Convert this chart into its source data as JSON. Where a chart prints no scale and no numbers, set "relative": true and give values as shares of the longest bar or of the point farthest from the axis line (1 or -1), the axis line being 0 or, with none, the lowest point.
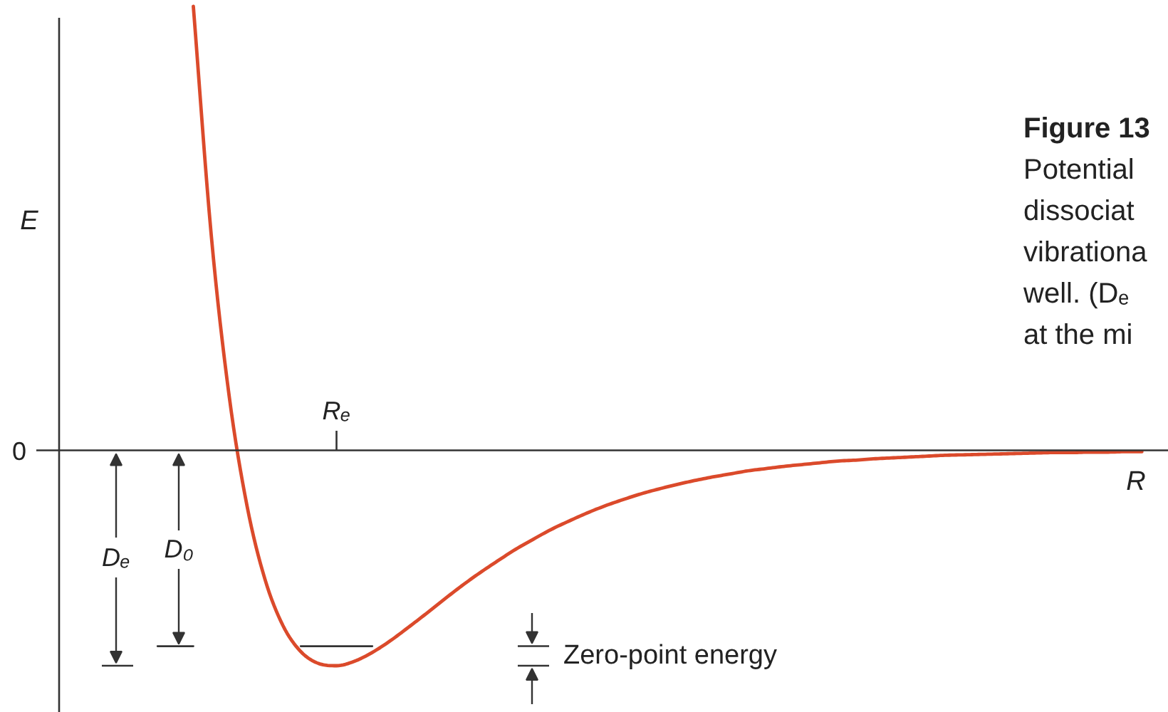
{
  "chart_data": {
    "type": "line",
    "xlabel": "R",
    "ylabel": "E",
    "relative": true,
    "categories": [
      null,
      null,
      null,
      null,
      null,
      null,
      null,
      null,
      null,
      null,
      null,
      null,
      null,
      null,
      null,
      null,
      null,
      null,
      null,
      null,
      null,
      null,
      null,
      null,
      null,
      null,
      null,
      null,
      null,
      null,
      null,
      null,
      null,
      null,
      null,
      null,
      null,
      null,
      null,
      null,
      null,
      null,
      null,
      null,
      null,
      null,
      null,
      null,
      null,
      null,
      null,
      null,
      null,
      null,
      null,
      null,
      null,
      null,
      null,
      null,
      null,
      null
    ],
    "series": [
      {
        "color": "#db4a2b",
        "values": [
          null,
          null,
          null,
          null,
          null,
          null,
          null,
          1,
          0.485,
          0.123,
          -0.125,
          -0.29,
          -0.394,
          -0.453,
          -0.48,
          -0.485,
          -0.475,
          -0.455,
          -0.429,
          -0.399,
          -0.368,
          -0.336,
          -0.305,
          -0.276,
          -0.249,
          -0.223,
          -0.2,
          -0.178,
          -0.159,
          -0.141,
          -0.125,
          -0.111,
          -0.098,
          -0.087,
          -0.077,
          -0.068,
          -0.06,
          -0.053,
          -0.046,
          -0.041,
          -0.036,
          -0.032,
          -0.028,
          -0.024,
          -0.022,
          -0.019,
          -0.017,
          -0.015,
          -0.013,
          -0.011,
          -0.01,
          -0.009,
          -0.008,
          -0.007,
          -0.006,
          -0.005,
          -0.005,
          -0.004,
          -0.004,
          -0.003,
          -0.003,
          null
        ]
      },
      {
        "color": "#333333",
        "values": [
          null,
          null,
          null,
          null,
          null,
          -0.441,
          -0.441,
          -0.441,
          null,
          null,
          null,
          null,
          null,
          -0.441,
          -0.441,
          -0.441,
          -0.441,
          -0.441,
          null,
          null,
          null,
          null,
          null,
          null,
          null,
          null,
          null,
          null,
          null,
          null,
          null,
          null,
          null,
          null,
          null,
          null,
          null,
          null,
          null,
          null,
          null,
          null,
          null,
          null,
          null,
          null,
          null,
          null,
          null,
          null,
          null,
          null,
          null,
          null,
          null,
          null,
          null,
          null,
          null,
          null,
          null,
          null
        ]
      }
    ],
    "ref_lines": [
      {
        "axis": "y",
        "value": 0,
        "label": "0",
        "color": "#333333"
      }
    ],
    "annotations": [
      "Rₑ",
      "Dₑ",
      "D₀",
      "Zero-point energy",
      "Figure 13",
      "Potential",
      "dissociat",
      "vibrationa",
      "well. (Dₑ",
      "at the mi"
    ]
  }
}
